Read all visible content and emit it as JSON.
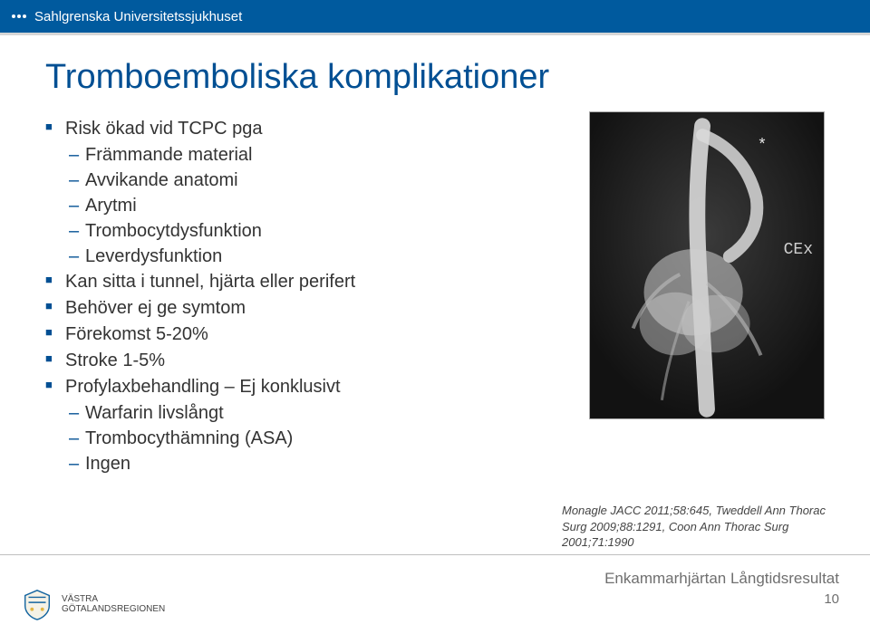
{
  "header": {
    "org_name": "Sahlgrenska Universitetssjukhuset",
    "bg_color": "#005a9e"
  },
  "title": "Tromboemboliska komplikationer",
  "title_color": "#004f93",
  "bullets": [
    {
      "level": 1,
      "text": "Risk ökad vid TCPC pga"
    },
    {
      "level": 2,
      "text": "Främmande material"
    },
    {
      "level": 2,
      "text": "Avvikande anatomi"
    },
    {
      "level": 2,
      "text": "Arytmi"
    },
    {
      "level": 2,
      "text": "Trombocytdysfunktion"
    },
    {
      "level": 2,
      "text": "Leverdysfunktion"
    },
    {
      "level": 1,
      "text": "Kan sitta i tunnel, hjärta eller perifert"
    },
    {
      "level": 1,
      "text": "Behöver ej ge symtom"
    },
    {
      "level": 1,
      "text": "Förekomst 5-20%"
    },
    {
      "level": 1,
      "text": "Stroke 1-5%"
    },
    {
      "level": 1,
      "text": "Profylaxbehandling – Ej konklusivt"
    },
    {
      "level": 2,
      "text": "Warfarin livslångt"
    },
    {
      "level": 2,
      "text": "Trombocythämning (ASA)"
    },
    {
      "level": 2,
      "text": "Ingen"
    }
  ],
  "figure": {
    "label": "CEx",
    "bg": "#1b1b1b",
    "vessel_color": "#d9d9d9"
  },
  "citation": "Monagle JACC 2011;58:645, Tweddell Ann Thorac Surg 2009;88:1291, Coon Ann Thorac Surg 2001;71:1990",
  "footer": {
    "region_line1": "VÄSTRA",
    "region_line2": "GÖTALANDSREGIONEN",
    "subtitle": "Enkammarhjärtan Långtidsresultat",
    "page": "10"
  }
}
